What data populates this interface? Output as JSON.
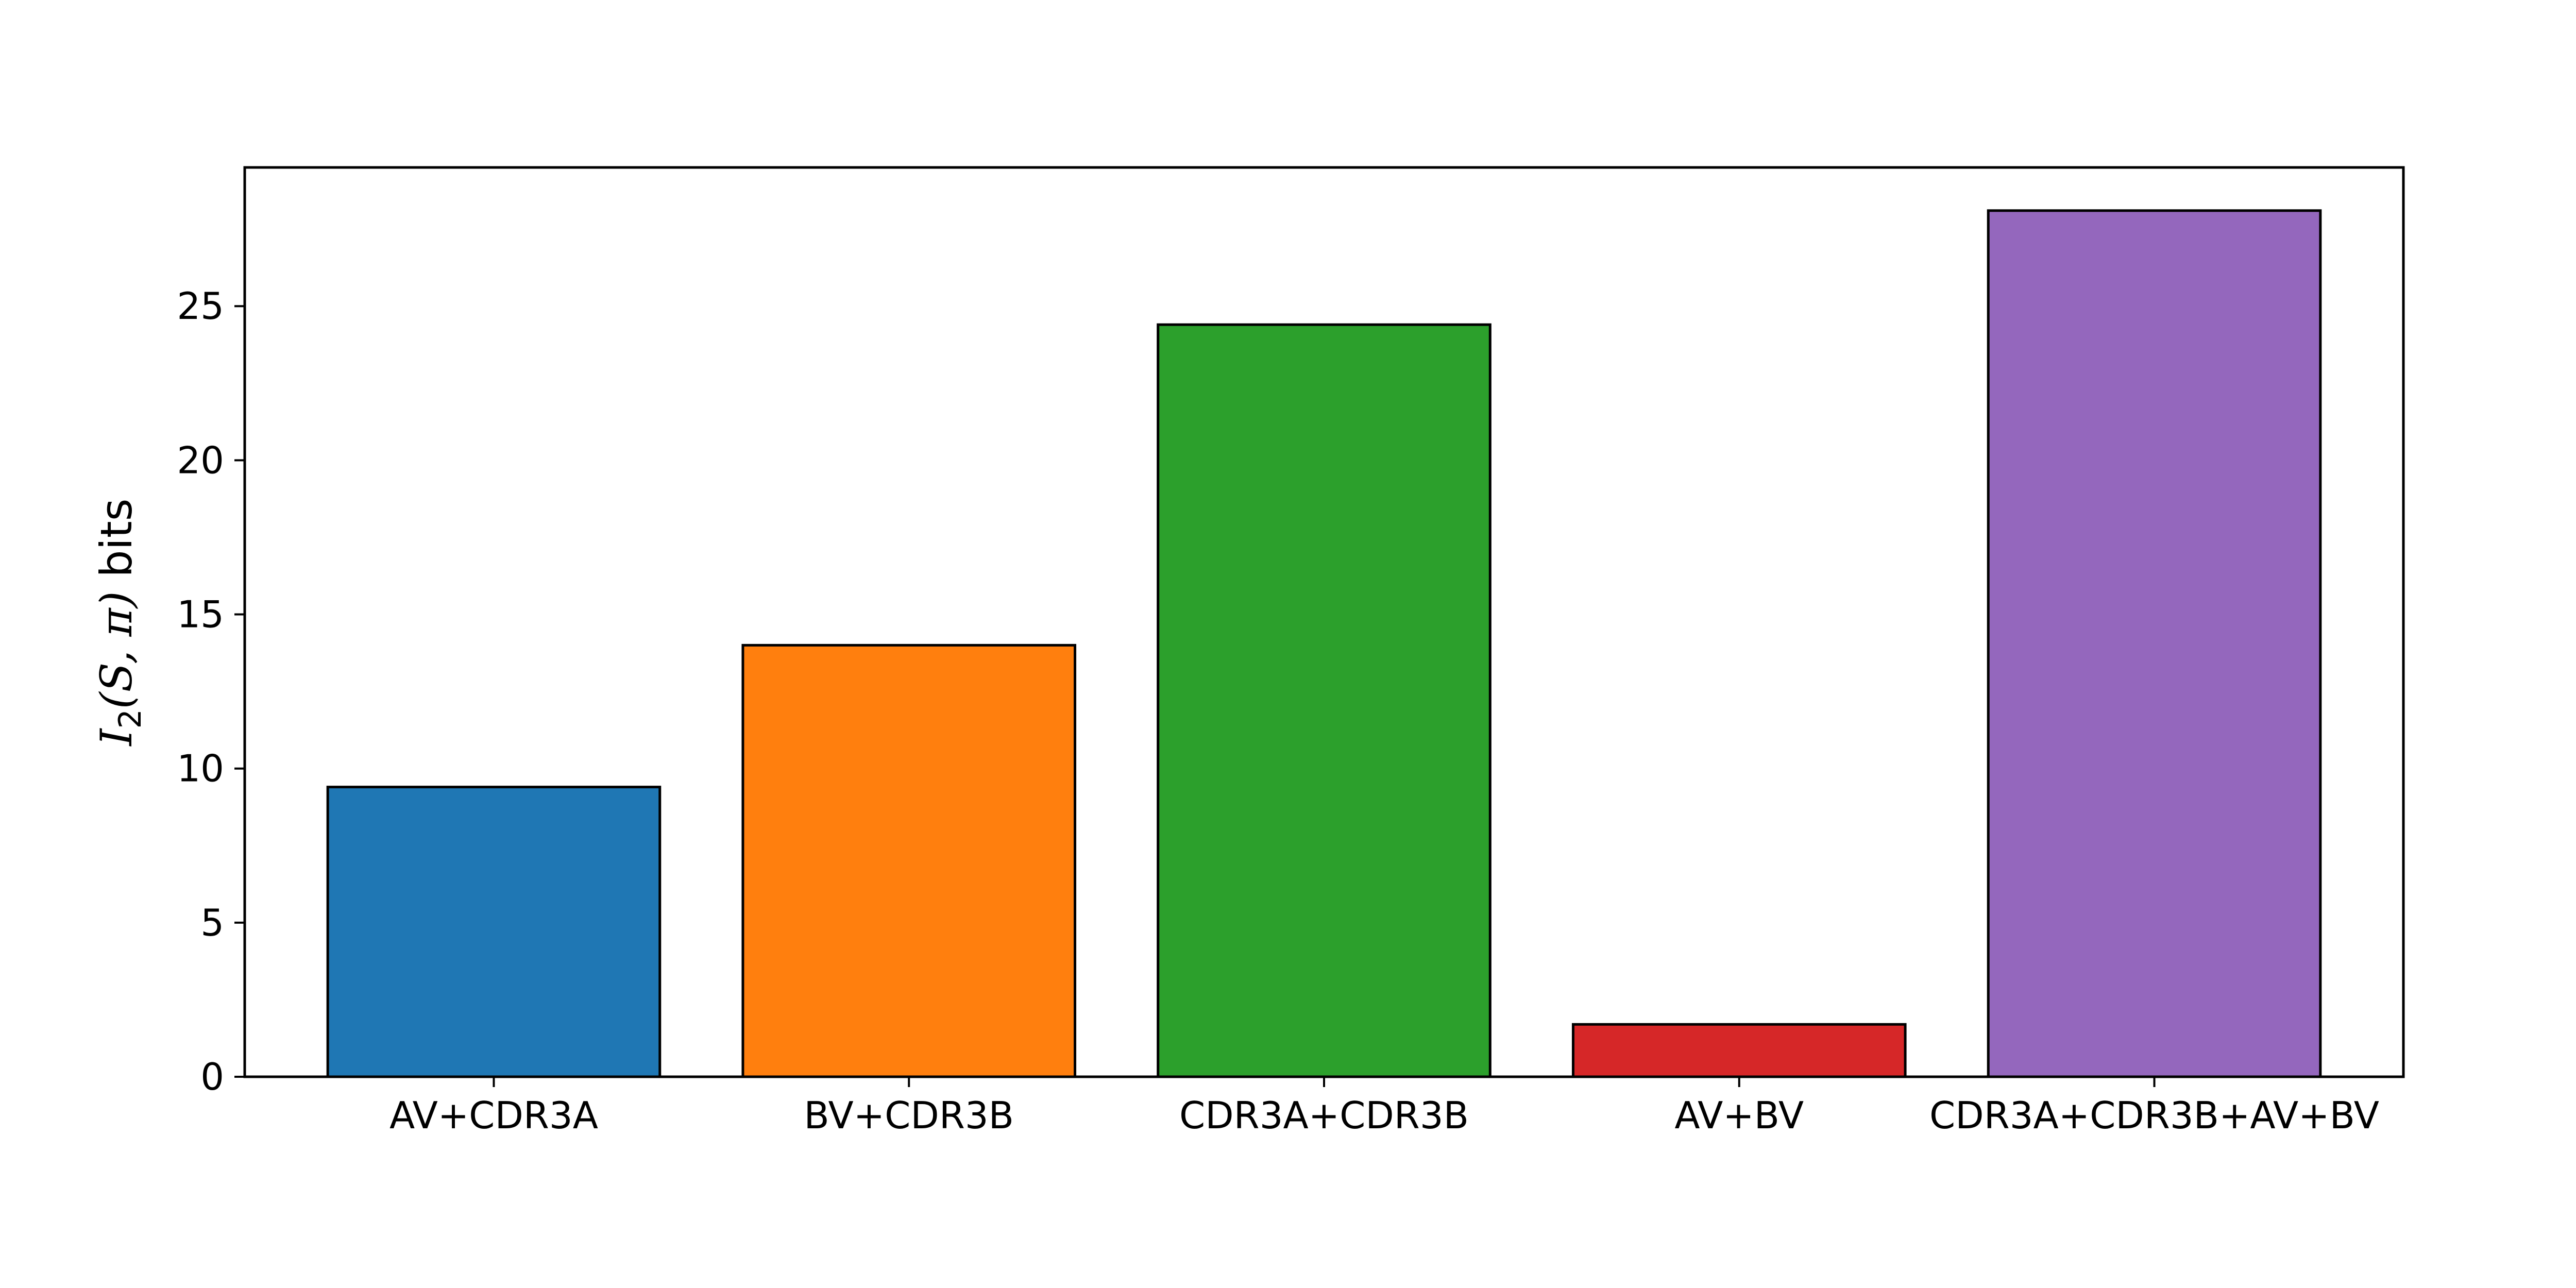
{
  "chart_data": {
    "type": "bar",
    "categories": [
      "AV+CDR3A",
      "BV+CDR3B",
      "CDR3A+CDR3B",
      "AV+BV",
      "CDR3A+CDR3B+AV+BV"
    ],
    "values": [
      9.4,
      14.0,
      24.4,
      1.7,
      28.1
    ],
    "colors": [
      "#1f77b4",
      "#ff7f0e",
      "#2ca02c",
      "#d62728",
      "#9467bd"
    ],
    "edge_color": "#000000",
    "ylim": [
      0,
      29.5
    ],
    "yticks": [
      0,
      5,
      10,
      15,
      20,
      25
    ],
    "ylabel": {
      "symbol": "I",
      "subscript": "2",
      "args": "(S, π)",
      "unit": "bits"
    },
    "grid": false,
    "legend": "none"
  }
}
